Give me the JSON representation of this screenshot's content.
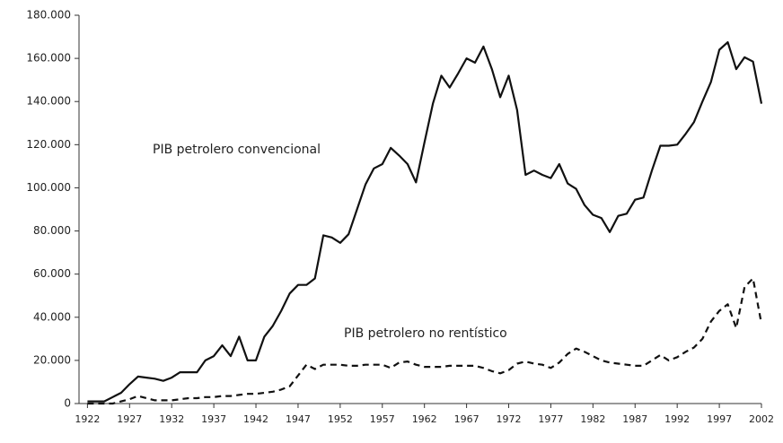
{
  "chart_data": {
    "type": "line",
    "x": [
      1922,
      1923,
      1924,
      1925,
      1926,
      1927,
      1928,
      1929,
      1930,
      1931,
      1932,
      1933,
      1934,
      1935,
      1936,
      1937,
      1938,
      1939,
      1940,
      1941,
      1942,
      1943,
      1944,
      1945,
      1946,
      1947,
      1948,
      1949,
      1950,
      1951,
      1952,
      1953,
      1954,
      1955,
      1956,
      1957,
      1958,
      1959,
      1960,
      1961,
      1962,
      1963,
      1964,
      1965,
      1966,
      1967,
      1968,
      1969,
      1970,
      1971,
      1972,
      1973,
      1974,
      1975,
      1976,
      1977,
      1978,
      1979,
      1980,
      1981,
      1982,
      1983,
      1984,
      1985,
      1986,
      1987,
      1988,
      1989,
      1990,
      1991,
      1992,
      1993,
      1994,
      1995,
      1996,
      1997,
      1998,
      1999,
      2000,
      2001,
      2002
    ],
    "series": [
      {
        "color": "#111111",
        "style": "solid",
        "values": [
          1000,
          1000,
          1000,
          3000,
          5000,
          9000,
          12500,
          12000,
          11500,
          10500,
          12000,
          14500,
          14500,
          14500,
          20000,
          22000,
          27000,
          22000,
          31000,
          20000,
          20000,
          31000,
          36000,
          43000,
          51000,
          55000,
          55000,
          58000,
          78000,
          77000,
          74500,
          78500,
          90000,
          101500,
          109000,
          111000,
          118500,
          115000,
          111000,
          102500,
          121000,
          139000,
          152000,
          146500,
          153000,
          160000,
          158000,
          165500,
          155000,
          142000,
          152000,
          136000,
          106000,
          108000,
          106000,
          104500,
          111000,
          102000,
          99500,
          92000,
          87500,
          86000,
          79500,
          87000,
          88000,
          94500,
          95500,
          108000,
          119500,
          119500,
          120000,
          125000,
          130500,
          140000,
          149000,
          164000,
          167500,
          155000,
          160500,
          158500,
          139000
        ]
      },
      {
        "color": "#111111",
        "style": "dashed",
        "values": [
          0,
          0,
          0,
          0,
          1000,
          2000,
          3500,
          2500,
          1500,
          1500,
          1500,
          2000,
          2500,
          2500,
          3000,
          3000,
          3500,
          3500,
          4000,
          4500,
          4500,
          5000,
          5500,
          6500,
          8000,
          13000,
          18000,
          16000,
          18000,
          18000,
          18000,
          17500,
          17500,
          18000,
          18000,
          18000,
          16500,
          19000,
          19500,
          18000,
          17000,
          17000,
          17000,
          17500,
          17500,
          17500,
          17500,
          16500,
          15000,
          14000,
          15500,
          18500,
          19500,
          18500,
          18000,
          16500,
          19000,
          23000,
          25500,
          24000,
          22000,
          20000,
          19000,
          18500,
          18000,
          17500,
          17500,
          20000,
          22500,
          20000,
          21500,
          24000,
          26000,
          30000,
          38000,
          43000,
          46000,
          35000,
          54000,
          58000,
          37000
        ]
      }
    ],
    "annotations": [
      {
        "text": "PIB petrolero convencional",
        "series": 0
      },
      {
        "text": "PIB petrolero no rentístico",
        "series": 1
      }
    ],
    "xlim": [
      1921,
      2002
    ],
    "xticks": [
      1922,
      1927,
      1932,
      1937,
      1942,
      1947,
      1952,
      1957,
      1962,
      1967,
      1972,
      1977,
      1982,
      1987,
      1992,
      1997,
      2002
    ],
    "ylim": [
      0,
      180000
    ],
    "yticks": [
      0,
      {
        "value": 20000,
        "label": "20.000"
      },
      {
        "value": 40000,
        "label": "40.000"
      },
      {
        "value": 60000,
        "label": "60.000"
      },
      {
        "value": 80000,
        "label": "80.000"
      },
      {
        "value": 100000,
        "label": "100.000"
      },
      {
        "value": 120000,
        "label": "120.000"
      },
      {
        "value": 140000,
        "label": "140.000"
      },
      {
        "value": 160000,
        "label": "160.000"
      },
      {
        "value": {
          "value": 180000,
          "label": "180.000"
        },
        "label": null
      }
    ]
  }
}
